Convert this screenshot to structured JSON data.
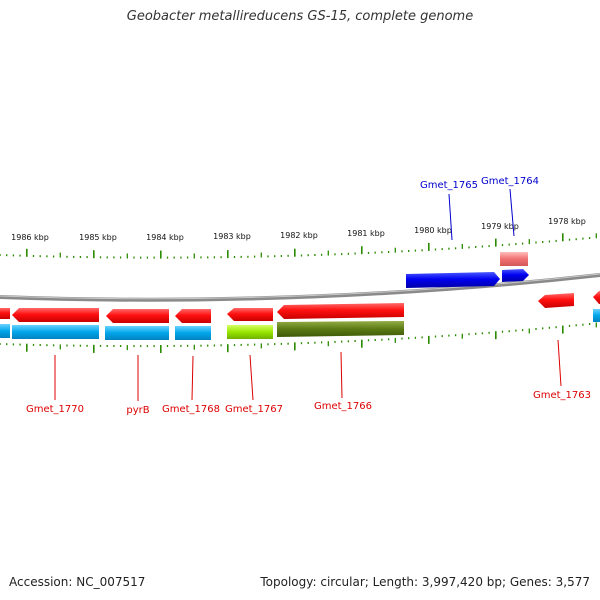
{
  "title": "Geobacter metallireducens GS-15, complete genome",
  "accession": "Accession: NC_007517",
  "topology": "Topology: circular; Length: 3,997,420 bp; Genes: 3,577",
  "colors": {
    "gene_red": "#ff1a1a",
    "gene_blue": "#0000ee",
    "cds_cyan": "#00aaee",
    "lime": "#99ee00",
    "olive": "#5a7a10",
    "tick_green": "#2a8a00",
    "backbone": "#888888",
    "label_red": "#dd0000",
    "label_blue": "#0000cc"
  },
  "kbp_labels": [
    "1986 kbp",
    "1985 kbp",
    "1984 kbp",
    "1983 kbp",
    "1982 kbp",
    "1981 kbp",
    "1980 kbp",
    "1979 kbp",
    "1978 kbp"
  ],
  "gene_labels": {
    "gmet_1770": "Gmet_1770",
    "pyrb": "pyrB",
    "gmet_1768": "Gmet_1768",
    "gmet_1767": "Gmet_1767",
    "gmet_1766": "Gmet_1766",
    "gmet_1765": "Gmet_1765",
    "gmet_1764": "Gmet_1764",
    "gmet_1763": "Gmet_1763"
  }
}
